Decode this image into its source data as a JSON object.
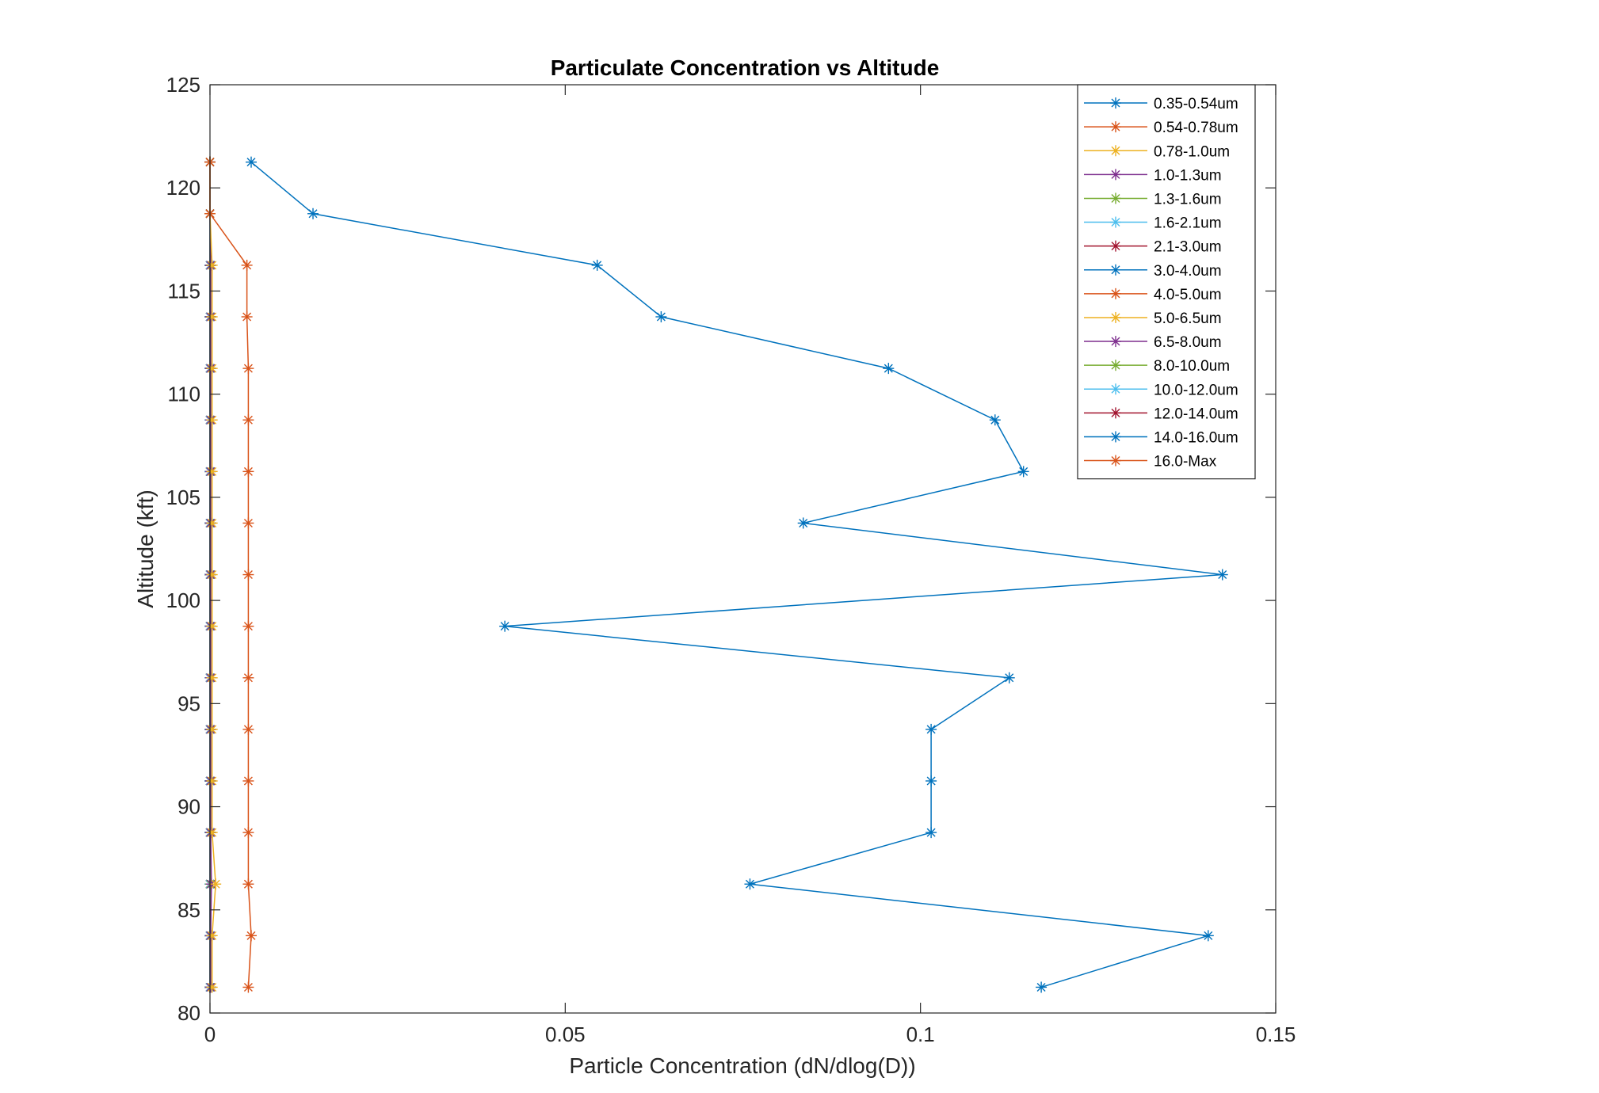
{
  "chart_data": {
    "type": "line",
    "title": "Particulate Concentration vs Altitude",
    "xlabel": "Particle Concentration (dN/dlog(D))",
    "ylabel": "Altitude (kft)",
    "xlim": [
      0,
      0.15
    ],
    "ylim": [
      80,
      125
    ],
    "xticks": [
      0,
      0.05,
      0.1,
      0.15
    ],
    "xtick_labels": [
      "0",
      "0.05",
      "0.1",
      "0.15"
    ],
    "yticks": [
      80,
      85,
      90,
      95,
      100,
      105,
      110,
      115,
      120,
      125
    ],
    "ytick_labels": [
      "80",
      "85",
      "90",
      "95",
      "100",
      "105",
      "110",
      "115",
      "120",
      "125"
    ],
    "grid": false,
    "legend_position": "top-right",
    "marker": "asterisk",
    "y": [
      121.25,
      118.75,
      116.25,
      113.75,
      111.25,
      108.75,
      106.25,
      103.75,
      101.25,
      98.75,
      96.25,
      93.75,
      91.25,
      88.75,
      86.25,
      83.75,
      81.25
    ],
    "series": [
      {
        "name": "0.35-0.54um",
        "color": "#0072BD",
        "values": [
          0.0058,
          0.0145,
          0.0545,
          0.0635,
          0.0955,
          0.1105,
          0.1145,
          0.0835,
          0.1425,
          0.0415,
          0.1125,
          0.1015,
          0.1015,
          0.1015,
          0.076,
          0.1405,
          0.117
        ]
      },
      {
        "name": "0.54-0.78um",
        "color": "#D95319",
        "values": [
          0.0,
          0.0,
          0.0052,
          0.0052,
          0.0054,
          0.0054,
          0.0054,
          0.0054,
          0.0054,
          0.0054,
          0.0054,
          0.0054,
          0.0054,
          0.0054,
          0.0054,
          0.0058,
          0.0054
        ]
      },
      {
        "name": "0.78-1.0um",
        "color": "#EDB120",
        "values": [
          0.0,
          0.0,
          0.0003,
          0.0003,
          0.0003,
          0.0003,
          0.0003,
          0.0003,
          0.0003,
          0.0003,
          0.0003,
          0.0003,
          0.0003,
          0.0003,
          0.0008,
          0.0003,
          0.0003
        ]
      },
      {
        "name": "1.0-1.3um",
        "color": "#7E2F8E",
        "values": [
          0.0,
          0.0,
          0.0001,
          0.0001,
          0.0001,
          0.0001,
          0.0001,
          0.0001,
          0.0001,
          0.0001,
          0.0001,
          0.0001,
          0.0001,
          0.0001,
          0.0002,
          0.0001,
          0.0001
        ]
      },
      {
        "name": "1.3-1.6um",
        "color": "#77AC30",
        "values": [
          0.0,
          0.0,
          0.0001,
          0.0001,
          0.0001,
          0.0001,
          0.0001,
          0.0001,
          0.0001,
          0.0001,
          0.0001,
          0.0001,
          0.0001,
          0.0001,
          0.0001,
          0.0001,
          0.0001
        ]
      },
      {
        "name": "1.6-2.1um",
        "color": "#4DBEEE",
        "values": [
          0.0,
          0.0,
          0.0,
          0.0,
          0.0,
          0.0,
          0.0,
          0.0,
          0.0,
          0.0,
          0.0,
          0.0,
          0.0,
          0.0,
          0.0,
          0.0,
          0.0
        ]
      },
      {
        "name": "2.1-3.0um",
        "color": "#A2142F",
        "values": [
          0.0,
          0.0,
          0.0,
          0.0,
          0.0,
          0.0,
          0.0,
          0.0,
          0.0,
          0.0,
          0.0,
          0.0,
          0.0,
          0.0,
          0.0,
          0.0,
          0.0
        ]
      },
      {
        "name": "3.0-4.0um",
        "color": "#0072BD",
        "values": [
          0.0,
          0.0,
          0.0,
          0.0,
          0.0,
          0.0,
          0.0,
          0.0,
          0.0,
          0.0,
          0.0,
          0.0,
          0.0,
          0.0,
          0.0,
          0.0,
          0.0
        ]
      },
      {
        "name": "4.0-5.0um",
        "color": "#D95319",
        "values": [
          0.0,
          0.0,
          0.0,
          0.0,
          0.0,
          0.0,
          0.0,
          0.0,
          0.0,
          0.0,
          0.0,
          0.0,
          0.0,
          0.0,
          0.0,
          0.0,
          0.0
        ]
      },
      {
        "name": "5.0-6.5um",
        "color": "#EDB120",
        "values": [
          0.0,
          0.0,
          0.0,
          0.0,
          0.0,
          0.0,
          0.0,
          0.0,
          0.0,
          0.0,
          0.0,
          0.0,
          0.0,
          0.0,
          0.0,
          0.0,
          0.0
        ]
      },
      {
        "name": "6.5-8.0um",
        "color": "#7E2F8E",
        "values": [
          0.0,
          0.0,
          0.0,
          0.0,
          0.0,
          0.0,
          0.0,
          0.0,
          0.0,
          0.0,
          0.0,
          0.0,
          0.0,
          0.0,
          0.0,
          0.0,
          0.0
        ]
      },
      {
        "name": "8.0-10.0um",
        "color": "#77AC30",
        "values": [
          0.0,
          0.0,
          0.0,
          0.0,
          0.0,
          0.0,
          0.0,
          0.0,
          0.0,
          0.0,
          0.0,
          0.0,
          0.0,
          0.0,
          0.0,
          0.0,
          0.0
        ]
      },
      {
        "name": "10.0-12.0um",
        "color": "#4DBEEE",
        "values": [
          0.0,
          0.0,
          0.0,
          0.0,
          0.0,
          0.0,
          0.0,
          0.0,
          0.0,
          0.0,
          0.0,
          0.0,
          0.0,
          0.0,
          0.0,
          0.0,
          0.0
        ]
      },
      {
        "name": "12.0-14.0um",
        "color": "#A2142F",
        "values": [
          0.0,
          0.0,
          0.0,
          0.0,
          0.0,
          0.0,
          0.0,
          0.0,
          0.0,
          0.0,
          0.0,
          0.0,
          0.0,
          0.0,
          0.0,
          0.0,
          0.0
        ]
      },
      {
        "name": "14.0-16.0um",
        "color": "#0072BD",
        "values": [
          0.0,
          0.0,
          0.0,
          0.0,
          0.0,
          0.0,
          0.0,
          0.0,
          0.0,
          0.0,
          0.0,
          0.0,
          0.0,
          0.0,
          0.0,
          0.0,
          0.0
        ]
      },
      {
        "name": "16.0-Max",
        "color": "#D95319",
        "values": [
          0.0,
          0.0,
          0.0,
          0.0,
          0.0,
          0.0,
          0.0,
          0.0,
          0.0,
          0.0,
          0.0,
          0.0,
          0.0,
          0.0,
          0.0,
          0.0,
          0.0
        ]
      }
    ]
  }
}
